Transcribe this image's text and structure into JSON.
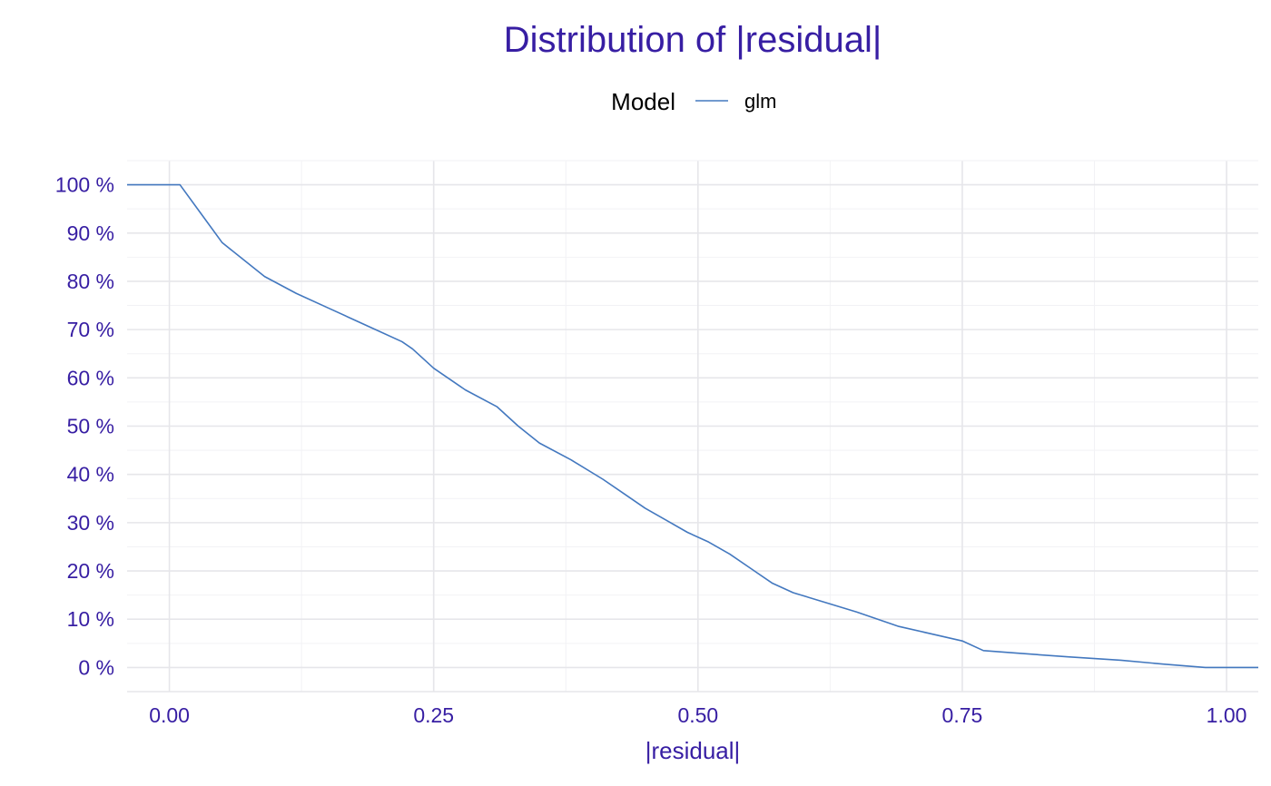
{
  "chart_data": {
    "type": "line",
    "title": "Distribution of |residual|",
    "xlabel": "|residual|",
    "ylabel": "",
    "xlim": [
      -0.04,
      1.03
    ],
    "ylim": [
      -0.05,
      1.05
    ],
    "x_ticks": [
      0,
      0.25,
      0.5,
      0.75,
      1.0
    ],
    "x_tick_labels": [
      "0.00",
      "0.25",
      "0.50",
      "0.75",
      "1.00"
    ],
    "y_ticks": [
      0,
      0.1,
      0.2,
      0.3,
      0.4,
      0.5,
      0.6,
      0.7,
      0.8,
      0.9,
      1.0
    ],
    "y_tick_labels": [
      "0 %",
      "10 %",
      "20 %",
      "30 %",
      "40 %",
      "50 %",
      "60 %",
      "70 %",
      "80 %",
      "90 %",
      "100 %"
    ],
    "grid": true,
    "legend": {
      "title": "Model",
      "placement": "top"
    },
    "series": [
      {
        "name": "glm",
        "color": "#4378bf",
        "x": [
          -0.04,
          0.01,
          0.03,
          0.05,
          0.07,
          0.09,
          0.12,
          0.15,
          0.17,
          0.19,
          0.22,
          0.23,
          0.25,
          0.28,
          0.31,
          0.33,
          0.35,
          0.38,
          0.41,
          0.43,
          0.45,
          0.47,
          0.49,
          0.51,
          0.53,
          0.55,
          0.57,
          0.59,
          0.62,
          0.65,
          0.67,
          0.69,
          0.72,
          0.75,
          0.77,
          0.8,
          0.85,
          0.9,
          0.94,
          0.98,
          1.03
        ],
        "y": [
          1.0,
          1.0,
          0.94,
          0.88,
          0.845,
          0.81,
          0.775,
          0.745,
          0.725,
          0.705,
          0.675,
          0.66,
          0.62,
          0.575,
          0.54,
          0.5,
          0.465,
          0.43,
          0.39,
          0.36,
          0.33,
          0.305,
          0.28,
          0.26,
          0.235,
          0.205,
          0.175,
          0.155,
          0.135,
          0.115,
          0.1,
          0.085,
          0.07,
          0.055,
          0.035,
          0.03,
          0.022,
          0.015,
          0.007,
          0.0,
          0.0
        ]
      }
    ]
  }
}
